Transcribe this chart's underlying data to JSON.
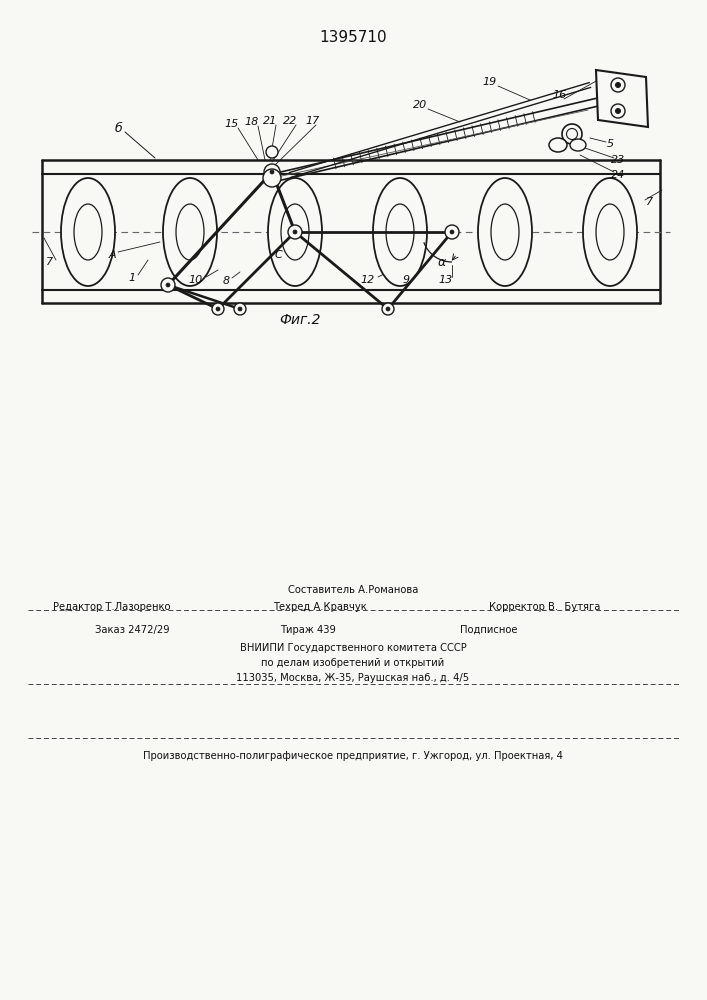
{
  "patent_number": "1395710",
  "fig_label": "Фиг.2",
  "bg_color": "#f8f8f5",
  "line_color": "#1a1a1a",
  "text_color": "#111111",
  "footer": {
    "sestavitel": "Составитель А.Романова",
    "redaktor": "Редактор Т.Лазоренко",
    "tehred": "Техред А.Кравчук",
    "korrektor": "Корректор В.  Бутяга",
    "zakaz": "Заказ 2472/29",
    "tirazh": "Тираж 439",
    "podpisnoe": "Подписное",
    "vniip": "ВНИИПИ Государственного комитета СССР",
    "podel": "по делам изобретений и открытий",
    "address": "113035, Москва, Ж-35, Раушская наб., д. 4/5",
    "proizvod": "Производственно-полиграфическое предприятие, г. Ужгород, ул. Проектная, 4"
  }
}
